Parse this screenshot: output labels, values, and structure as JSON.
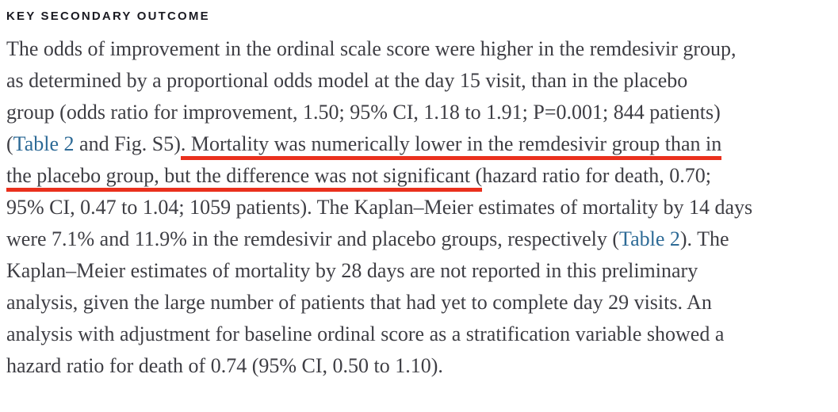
{
  "heading": {
    "text": "KEY SECONDARY OUTCOME"
  },
  "colors": {
    "body_text": "#3e3e44",
    "heading": "#1a1a22",
    "link": "#2d6a96",
    "annotation_red": "#ea301d",
    "background": "#ffffff"
  },
  "paragraph": {
    "lines": [
      {
        "segments": [
          {
            "text": "The odds of improvement in the ordinal scale score were higher in the remdesivir group,",
            "style": "plain"
          }
        ]
      },
      {
        "segments": [
          {
            "text": "as determined by a proportional odds model at the day 15 visit, than in the placebo",
            "style": "plain"
          }
        ]
      },
      {
        "segments": [
          {
            "text": "group (odds ratio for improvement, 1.50; 95% CI, 1.18 to 1.91; P=0.001; 844 patients)",
            "style": "plain"
          }
        ]
      },
      {
        "segments": [
          {
            "text": "(",
            "style": "plain"
          },
          {
            "text": "Table 2",
            "style": "link"
          },
          {
            "text": " and Fig. S5)",
            "style": "plain"
          },
          {
            "text": ". Mortality was numerically lower in the remdesivir group than in",
            "style": "underline"
          }
        ]
      },
      {
        "segments": [
          {
            "text": "the placebo group, but the difference was not significant (",
            "style": "underline"
          },
          {
            "text": "hazard ratio for death, 0.70;",
            "style": "plain"
          }
        ]
      },
      {
        "segments": [
          {
            "text": "95% CI, 0.47 to 1.04; 1059 patients). The Kaplan–Meier estimates of mortality by 14 days",
            "style": "plain"
          }
        ]
      },
      {
        "segments": [
          {
            "text": "were 7.1% and 11.9% in the remdesivir and placebo groups, respectively (",
            "style": "plain"
          },
          {
            "text": "Table 2",
            "style": "link"
          },
          {
            "text": "). The",
            "style": "plain"
          }
        ]
      },
      {
        "segments": [
          {
            "text": "Kaplan–Meier estimates of mortality by 28 days are not reported in this preliminary",
            "style": "plain"
          }
        ]
      },
      {
        "segments": [
          {
            "text": "analysis, given the large number of patients that had yet to complete day 29 visits. An",
            "style": "plain"
          }
        ]
      },
      {
        "segments": [
          {
            "text": "analysis with adjustment for baseline ordinal score as a stratification variable showed a",
            "style": "plain"
          }
        ]
      },
      {
        "segments": [
          {
            "text": "hazard ratio for death of 0.74 (95% CI, 0.50 to 1.10).",
            "style": "plain"
          }
        ]
      }
    ]
  }
}
